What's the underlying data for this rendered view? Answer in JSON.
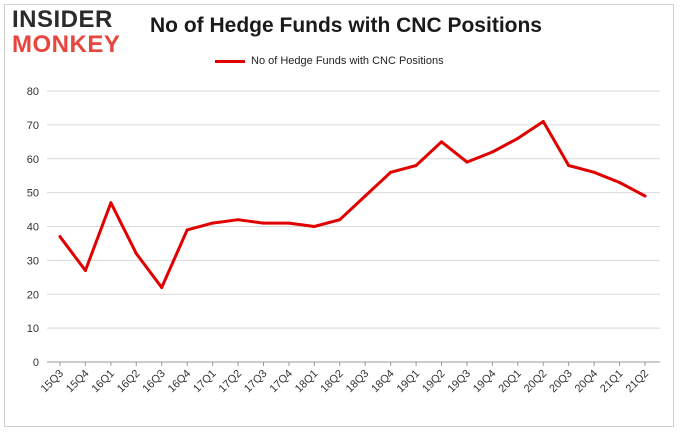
{
  "logo": {
    "line1": "INSIDER",
    "line2": "MONKEY"
  },
  "chart_data": {
    "type": "line",
    "title": "No of Hedge Funds with CNC Positions",
    "xlabel": "",
    "ylabel": "",
    "categories": [
      "15Q3",
      "15Q4",
      "16Q1",
      "16Q2",
      "16Q3",
      "16Q4",
      "17Q1",
      "17Q2",
      "17Q3",
      "17Q4",
      "18Q1",
      "18Q2",
      "18Q3",
      "18Q4",
      "19Q1",
      "19Q2",
      "19Q3",
      "19Q4",
      "20Q1",
      "20Q2",
      "20Q3",
      "20Q4",
      "21Q1",
      "21Q2"
    ],
    "series": [
      {
        "name": "No of Hedge Funds with CNC Positions",
        "values": [
          37,
          27,
          47,
          32,
          22,
          39,
          41,
          42,
          41,
          41,
          40,
          42,
          49,
          56,
          58,
          65,
          59,
          62,
          66,
          71,
          58,
          56,
          53,
          49
        ],
        "color": "#e00000"
      }
    ],
    "ylim": [
      0,
      80
    ],
    "yticks": [
      0,
      10,
      20,
      30,
      40,
      50,
      60,
      70,
      80
    ],
    "grid": true,
    "legend": "top-center"
  }
}
